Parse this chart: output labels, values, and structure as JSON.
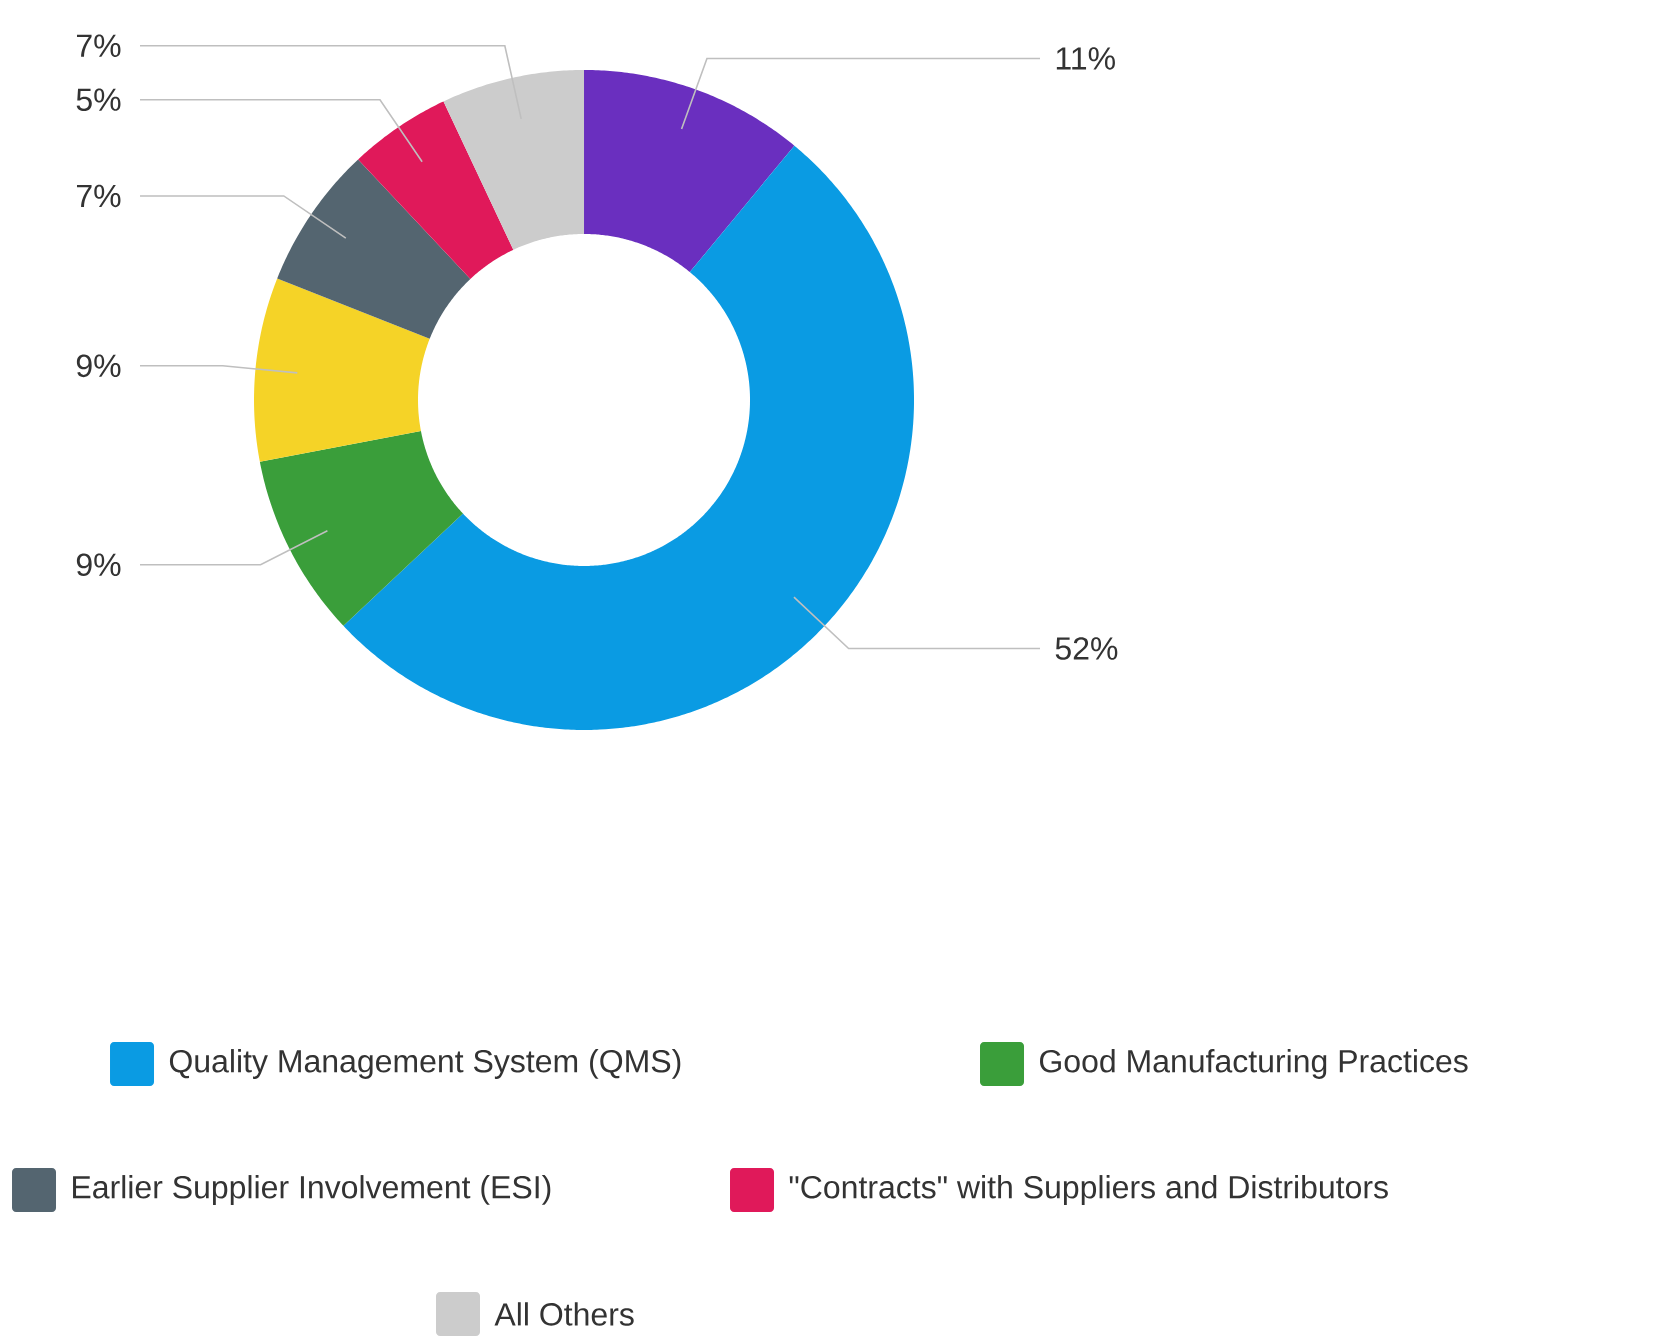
{
  "chart_data": {
    "type": "donut",
    "categories": [
      null,
      "Quality Management System (QMS)",
      "Good Manufacturing Practices",
      null,
      "Earlier Supplier Involvement (ESI)",
      "\"Contracts\" with Suppliers and Distributors",
      "All Others"
    ],
    "values": [
      11,
      52,
      9,
      9,
      7,
      5,
      7
    ],
    "value_labels": [
      "11%",
      "52%",
      "9%",
      "9%",
      "7%",
      "5%",
      "7%"
    ],
    "colors": [
      "#6a2fbf",
      "#0a9be3",
      "#3a9e3a",
      "#f5d327",
      "#546570",
      "#e0195a",
      "#cccccc"
    ],
    "legend": "bottom"
  }
}
